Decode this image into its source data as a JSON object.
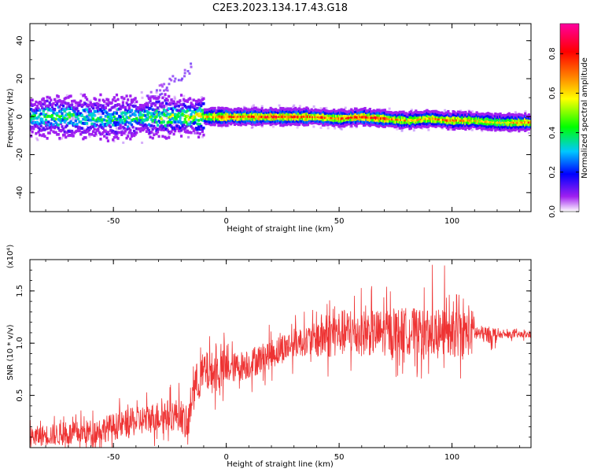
{
  "title": "C2E3.2023.134.17.43.G18",
  "chart_data": [
    {
      "type": "heatmap",
      "xlabel": "Height of straight line (km)",
      "ylabel": "Frequency (Hz)",
      "xlim": [
        -87,
        135
      ],
      "ylim": [
        -50,
        49
      ],
      "xticks": [
        -50,
        0,
        50,
        100
      ],
      "xtick_labels": [
        "-50",
        "0",
        "50",
        "100"
      ],
      "yticks": [
        -40,
        -20,
        0,
        20,
        40
      ],
      "ytick_labels": [
        "-40",
        "-20",
        "0",
        "20",
        "40"
      ],
      "colorbar": {
        "label": "Normalized spectral amplitude",
        "range": [
          0,
          1
        ],
        "ticks": [
          0.0,
          0.2,
          0.4,
          0.6,
          0.8
        ],
        "tick_labels": [
          "0.0",
          "0.2",
          "0.4",
          "0.6",
          "0.8"
        ],
        "colormap": [
          "#ffffff",
          "#a020f0",
          "#0000ff",
          "#00c8ff",
          "#00ff00",
          "#ffff00",
          "#ff8000",
          "#ff0000",
          "#ff00a0"
        ]
      },
      "ridge": {
        "x": [
          -87,
          -70,
          -50,
          -30,
          -20,
          -10,
          0,
          20,
          40,
          50,
          60,
          70,
          80,
          90,
          100,
          110,
          120,
          135
        ],
        "y": [
          0,
          0,
          -1,
          0,
          0,
          0,
          0,
          0,
          0,
          -1,
          0,
          -1,
          -2,
          -1,
          -2,
          -2,
          -3,
          -3
        ],
        "amplitude": [
          0.45,
          0.5,
          0.45,
          0.55,
          0.6,
          0.65,
          0.8,
          0.85,
          0.8,
          0.75,
          0.85,
          0.8,
          0.7,
          0.75,
          0.75,
          0.7,
          0.6,
          0.8
        ]
      },
      "grid": false
    },
    {
      "type": "line",
      "xlabel": "Height of straight line (km)",
      "ylabel": "SNR (10 * v/v)",
      "y_multiplier": "(x10⁴)",
      "xlim": [
        -87,
        135
      ],
      "ylim": [
        0,
        1.8
      ],
      "xticks": [
        -50,
        0,
        50,
        100
      ],
      "xtick_labels": [
        "-50",
        "0",
        "50",
        "100"
      ],
      "yticks": [
        0.5,
        1.0,
        1.5
      ],
      "ytick_labels": [
        "0.5",
        "1.0",
        "1.5"
      ],
      "series": [
        {
          "color": "#ee3333",
          "x": [
            -87,
            -80,
            -70,
            -60,
            -50,
            -40,
            -30,
            -20,
            -17,
            -15,
            -10,
            -5,
            0,
            10,
            20,
            30,
            40,
            50,
            60,
            70,
            80,
            90,
            95,
            100,
            105,
            110,
            115,
            120,
            125,
            130,
            135
          ],
          "y": [
            0.1,
            0.12,
            0.13,
            0.15,
            0.2,
            0.25,
            0.3,
            0.32,
            0.15,
            0.55,
            0.72,
            0.72,
            0.75,
            0.8,
            0.9,
            1.0,
            1.05,
            1.1,
            1.1,
            1.1,
            1.12,
            1.1,
            1.1,
            1.08,
            1.1,
            1.1,
            1.08,
            1.08,
            1.08,
            1.08,
            1.08
          ]
        }
      ],
      "grid": false
    }
  ]
}
